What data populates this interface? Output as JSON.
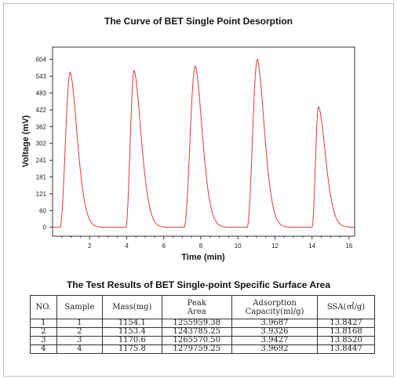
{
  "chart_data": {
    "type": "line",
    "title": "The Curve of BET Single Point Desorption",
    "xlabel": "Time (min)",
    "ylabel": "Voltage (mV)",
    "xlim": [
      0,
      16.3
    ],
    "ylim": [
      -32,
      648
    ],
    "x_ticks": [
      2,
      4,
      6,
      8,
      10,
      12,
      14,
      16
    ],
    "x_tick_labels": [
      "2",
      "4",
      "6",
      "8",
      "10",
      "12",
      "14",
      "16"
    ],
    "y_ticks": [
      0,
      60,
      121,
      181,
      241,
      302,
      362,
      422,
      483,
      543,
      604
    ],
    "y_tick_labels": [
      "0",
      "60",
      "121",
      "181",
      "241",
      "302",
      "362",
      "422",
      "483",
      "543",
      "604"
    ],
    "grid": false,
    "color": "#e53935",
    "series": [
      {
        "peaks": [
          {
            "start": 0.4,
            "time": 0.95,
            "height": 557
          },
          {
            "start": 3.95,
            "time": 4.4,
            "height": 563
          },
          {
            "start": 7.1,
            "time": 7.7,
            "height": 580
          },
          {
            "start": 10.5,
            "time": 11.05,
            "height": 604
          },
          {
            "start": 14.0,
            "time": 14.35,
            "height": 434
          }
        ]
      }
    ]
  },
  "table": {
    "title": "The Test Results of BET Single-point Specific Surface Area",
    "headers": [
      "NO.",
      "Sample",
      "Mass(mg)",
      "Peak\nArea",
      "Adsorption\nCapacity(ml/g)",
      "SSA(㎡/g)"
    ],
    "rows": [
      [
        "1",
        "1",
        "1154.1",
        "1255959.38",
        "3.9687",
        "13.8427"
      ],
      [
        "2",
        "2",
        "1153.4",
        "1243785.25",
        "3.9326",
        "13.8168"
      ],
      [
        "3",
        "3",
        "1170.6",
        "1265570.50",
        "3.9427",
        "13.8520"
      ],
      [
        "4",
        "4",
        "1175.8",
        "1279759.25",
        "3.9692",
        "13.8447"
      ]
    ]
  }
}
